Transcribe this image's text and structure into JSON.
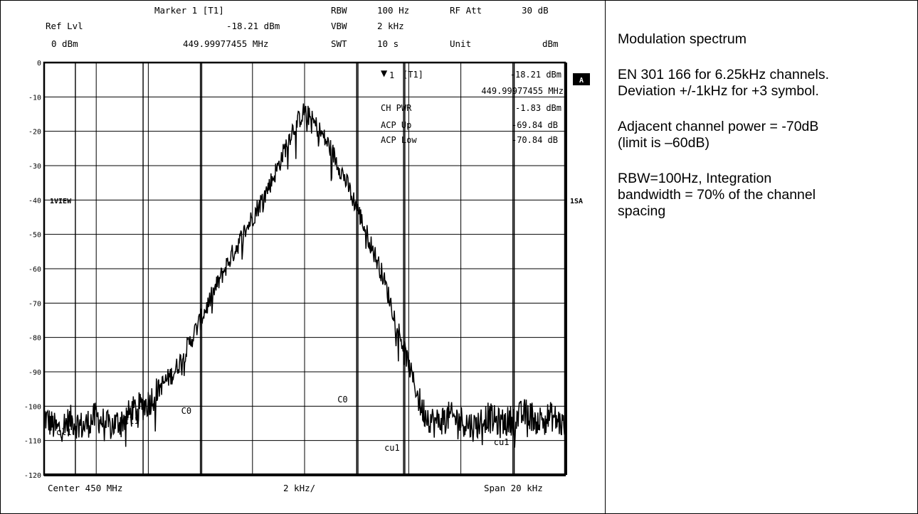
{
  "header": {
    "marker_label": "Marker 1 [T1]",
    "ref_lvl_label": "Ref Lvl",
    "ref_lvl_value": "0 dBm",
    "marker_level": "-18.21 dBm",
    "marker_freq": "449.99977455 MHz",
    "rbw_label": "RBW",
    "rbw_value": "100 Hz",
    "vbw_label": "VBW",
    "vbw_value": "2 kHz",
    "swt_label": "SWT",
    "swt_value": "10 s",
    "rf_att_label": "RF Att",
    "rf_att_value": "30 dB",
    "unit_label": "Unit",
    "unit_value": "dBm"
  },
  "readout": {
    "marker_tag": "1",
    "marker_tag_sub": "[T1]",
    "marker_level": "-18.21 dBm",
    "marker_freq": "449.99977455 MHz",
    "rows": [
      {
        "label": "CH PWR",
        "value": "-1.83 dBm"
      },
      {
        "label": "ACP Up",
        "value": "-69.84 dB"
      },
      {
        "label": "ACP Low",
        "value": "-70.84 dB"
      }
    ]
  },
  "side_labels": {
    "left": "1VIEW",
    "right": "1SA",
    "badge": "A"
  },
  "footer": {
    "center": "Center 450 MHz",
    "div": "2 kHz/",
    "span": "Span 20 kHz"
  },
  "notes": {
    "title": "Modulation spectrum",
    "line2a": "EN 301 166 for 6.25kHz channels.",
    "line2b": "Deviation +/-1kHz for +3 symbol.",
    "line3a": "Adjacent channel power = -70dB",
    "line3b": "(limit is –60dB)",
    "line4a": "RBW=100Hz, Integration",
    "line4b": "bandwidth = 70% of the channel",
    "line4c": "spacing"
  },
  "chart_data": {
    "type": "line",
    "xlabel": "",
    "ylabel": "",
    "xlim": [
      -10,
      10
    ],
    "ylim": [
      -120,
      0
    ],
    "y_unit": "dBm",
    "yticks": [
      "0",
      "-10",
      "-20",
      "-30",
      "-40",
      "-50",
      "-60",
      "-70",
      "-80",
      "-90",
      "-100",
      "-110",
      "-120"
    ],
    "channel_lines": [
      {
        "label": "cl1",
        "x": -8.8
      },
      {
        "label": "cl1",
        "x": -6.2
      },
      {
        "label": "C0",
        "x": -4.0
      },
      {
        "label": "C0",
        "x": 2.0
      },
      {
        "label": "cu1",
        "x": 3.8
      },
      {
        "label": "cu1",
        "x": 8.0
      }
    ],
    "channel_line_extra_x": [
      -3.95,
      2.05,
      3.85,
      8.05
    ],
    "marker": {
      "x": -0.03,
      "y": -18.21
    },
    "series": [
      {
        "x": [
          -10,
          -9.5,
          -9,
          -8.5,
          -8,
          -7.5,
          -7,
          -6.5,
          -6,
          -5.5,
          -5,
          -4.5,
          -4,
          -3.5,
          -3,
          -2.5,
          -2,
          -1.5,
          -1,
          -0.5,
          0,
          0.5,
          1,
          1.5,
          2,
          2.5,
          3,
          3.5,
          4,
          4.5,
          5,
          5.5,
          6,
          6.5,
          7,
          7.5,
          8,
          8.5,
          9,
          9.5,
          10
        ],
        "values": [
          -103,
          -107,
          -104,
          -106,
          -103,
          -106,
          -104,
          -101,
          -99,
          -94,
          -90,
          -83,
          -75,
          -67,
          -59,
          -52,
          -45,
          -38,
          -30,
          -20,
          -14,
          -19,
          -25,
          -33,
          -42,
          -52,
          -62,
          -75,
          -88,
          -101,
          -105,
          -103,
          -104,
          -106,
          -103,
          -105,
          -104,
          -102,
          -104,
          -103,
          -106
        ]
      }
    ]
  }
}
